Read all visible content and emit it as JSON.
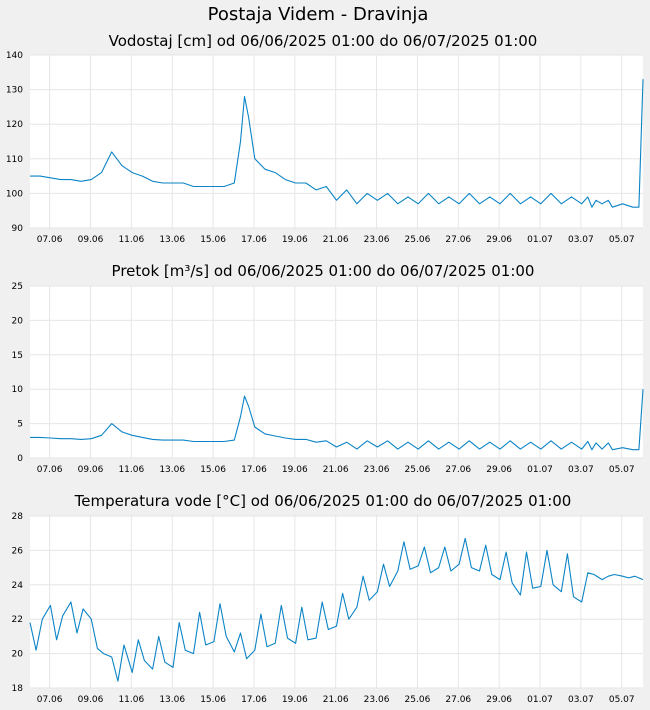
{
  "page_title": "Postaja Videm - Dravinja",
  "chart_data": [
    {
      "type": "line",
      "title": "Vodostaj [cm] od 06/06/2025 01:00 do 06/07/2025 01:00",
      "xlabel": "",
      "ylabel": "",
      "ylim": [
        90,
        140
      ],
      "yticks": [
        "90",
        "100",
        "110",
        "120",
        "130",
        "140"
      ],
      "xticks": [
        "07.06",
        "09.06",
        "11.06",
        "13.06",
        "15.06",
        "17.06",
        "19.06",
        "21.06",
        "23.06",
        "25.06",
        "27.06",
        "29.06",
        "01.07",
        "03.07",
        "05.07"
      ],
      "grid": true,
      "color": "#0b84c6",
      "series": [
        {
          "x": [
            0,
            0.5,
            1,
            1.5,
            2,
            2.5,
            3,
            3.5,
            4,
            4.5,
            5,
            5.5,
            6,
            6.5,
            7,
            7.5,
            8,
            8.5,
            9,
            9.5,
            10,
            10.3,
            10.5,
            10.7,
            11,
            11.5,
            12,
            12.5,
            13,
            13.5,
            14,
            14.5,
            15,
            15.5,
            16,
            16.5,
            17,
            17.5,
            18,
            18.5,
            19,
            19.5,
            20,
            20.5,
            21,
            21.5,
            22,
            22.5,
            23,
            23.5,
            24,
            24.5,
            25,
            25.5,
            26,
            26.5,
            27,
            27.3,
            27.5,
            27.7,
            28,
            28.3,
            28.5,
            29,
            29.5,
            29.8,
            30
          ],
          "y": [
            105,
            105,
            104.5,
            104,
            104,
            103.5,
            104,
            106,
            112,
            108,
            106,
            105,
            103.5,
            103,
            103,
            103,
            102,
            102,
            102,
            102,
            103,
            115,
            128,
            122,
            110,
            107,
            106,
            104,
            103,
            103,
            101,
            102,
            98,
            101,
            97,
            100,
            98,
            100,
            97,
            99,
            97,
            100,
            97,
            99,
            97,
            100,
            97,
            99,
            97,
            100,
            97,
            99,
            97,
            100,
            97,
            99,
            97,
            99,
            96,
            98,
            97,
            98,
            96,
            97,
            96,
            96,
            133
          ]
        }
      ]
    },
    {
      "type": "line",
      "title": "Pretok [m³/s] od 06/06/2025 01:00 do 06/07/2025 01:00",
      "xlabel": "",
      "ylabel": "",
      "ylim": [
        0,
        25
      ],
      "yticks": [
        "0",
        "5",
        "10",
        "15",
        "20",
        "25"
      ],
      "xticks": [
        "07.06",
        "09.06",
        "11.06",
        "13.06",
        "15.06",
        "17.06",
        "19.06",
        "21.06",
        "23.06",
        "25.06",
        "27.06",
        "29.06",
        "01.07",
        "03.07",
        "05.07"
      ],
      "grid": true,
      "color": "#0b84c6",
      "series": [
        {
          "x": [
            0,
            0.5,
            1,
            1.5,
            2,
            2.5,
            3,
            3.5,
            4,
            4.5,
            5,
            5.5,
            6,
            6.5,
            7,
            7.5,
            8,
            8.5,
            9,
            9.5,
            10,
            10.3,
            10.5,
            10.7,
            11,
            11.5,
            12,
            12.5,
            13,
            13.5,
            14,
            14.5,
            15,
            15.5,
            16,
            16.5,
            17,
            17.5,
            18,
            18.5,
            19,
            19.5,
            20,
            20.5,
            21,
            21.5,
            22,
            22.5,
            23,
            23.5,
            24,
            24.5,
            25,
            25.5,
            26,
            26.5,
            27,
            27.3,
            27.5,
            27.7,
            28,
            28.3,
            28.5,
            29,
            29.5,
            29.8,
            30
          ],
          "y": [
            3,
            3,
            2.9,
            2.8,
            2.8,
            2.7,
            2.8,
            3.3,
            5,
            3.8,
            3.3,
            3,
            2.7,
            2.6,
            2.6,
            2.6,
            2.4,
            2.4,
            2.4,
            2.4,
            2.6,
            6,
            9,
            7.5,
            4.5,
            3.5,
            3.2,
            2.9,
            2.7,
            2.7,
            2.3,
            2.5,
            1.6,
            2.3,
            1.3,
            2.5,
            1.6,
            2.5,
            1.3,
            2.3,
            1.3,
            2.5,
            1.3,
            2.3,
            1.3,
            2.5,
            1.3,
            2.3,
            1.3,
            2.5,
            1.3,
            2.3,
            1.3,
            2.5,
            1.3,
            2.3,
            1.3,
            2.4,
            1.2,
            2.2,
            1.3,
            2.2,
            1.2,
            1.5,
            1.2,
            1.2,
            10
          ]
        }
      ]
    },
    {
      "type": "line",
      "title": "Temperatura vode [°C] od 06/06/2025 01:00 do 06/07/2025 01:00",
      "xlabel": "",
      "ylabel": "",
      "ylim": [
        18,
        28
      ],
      "yticks": [
        "18",
        "20",
        "22",
        "24",
        "26",
        "28"
      ],
      "xticks": [
        "07.06",
        "09.06",
        "11.06",
        "13.06",
        "15.06",
        "17.06",
        "19.06",
        "21.06",
        "23.06",
        "25.06",
        "27.06",
        "29.06",
        "01.07",
        "03.07",
        "05.07"
      ],
      "grid": true,
      "color": "#0b84c6",
      "series": [
        {
          "x": [
            0,
            0.3,
            0.6,
            1.0,
            1.3,
            1.6,
            2.0,
            2.3,
            2.6,
            3.0,
            3.3,
            3.6,
            4.0,
            4.3,
            4.6,
            5.0,
            5.3,
            5.6,
            6.0,
            6.3,
            6.6,
            7.0,
            7.3,
            7.6,
            8.0,
            8.3,
            8.6,
            9.0,
            9.3,
            9.6,
            10.0,
            10.3,
            10.6,
            11.0,
            11.3,
            11.6,
            12.0,
            12.3,
            12.6,
            13.0,
            13.3,
            13.6,
            14.0,
            14.3,
            14.6,
            15.0,
            15.3,
            15.6,
            16.0,
            16.3,
            16.6,
            17.0,
            17.3,
            17.6,
            18.0,
            18.3,
            18.6,
            19.0,
            19.3,
            19.6,
            20.0,
            20.3,
            20.6,
            21.0,
            21.3,
            21.6,
            22.0,
            22.3,
            22.6,
            23.0,
            23.3,
            23.6,
            24.0,
            24.3,
            24.6,
            25.0,
            25.3,
            25.6,
            26.0,
            26.3,
            26.6,
            27.0,
            27.3,
            27.6,
            28.0,
            28.3,
            28.6,
            29.0,
            29.3,
            29.6,
            30.0
          ],
          "y": [
            21.8,
            20.2,
            22.0,
            22.8,
            20.8,
            22.2,
            23.0,
            21.2,
            22.6,
            22.0,
            20.3,
            20.0,
            19.8,
            18.4,
            20.5,
            18.9,
            20.8,
            19.6,
            19.1,
            21.0,
            19.5,
            19.2,
            21.8,
            20.2,
            20.0,
            22.4,
            20.5,
            20.7,
            22.9,
            21.0,
            20.1,
            21.2,
            19.7,
            20.2,
            22.3,
            20.4,
            20.6,
            22.8,
            20.9,
            20.6,
            22.7,
            20.8,
            20.9,
            23.0,
            21.4,
            21.6,
            23.5,
            22.0,
            22.7,
            24.5,
            23.1,
            23.6,
            25.2,
            23.9,
            24.8,
            26.5,
            24.9,
            25.1,
            26.2,
            24.7,
            25.0,
            26.2,
            24.8,
            25.2,
            26.7,
            25.0,
            24.8,
            26.3,
            24.6,
            24.3,
            25.9,
            24.1,
            23.4,
            25.9,
            23.8,
            23.9,
            26.0,
            24.0,
            23.6,
            25.8,
            23.3,
            23.0,
            24.7,
            24.6,
            24.3,
            24.5,
            24.6,
            24.5,
            24.4,
            24.5,
            24.3
          ]
        }
      ]
    }
  ]
}
